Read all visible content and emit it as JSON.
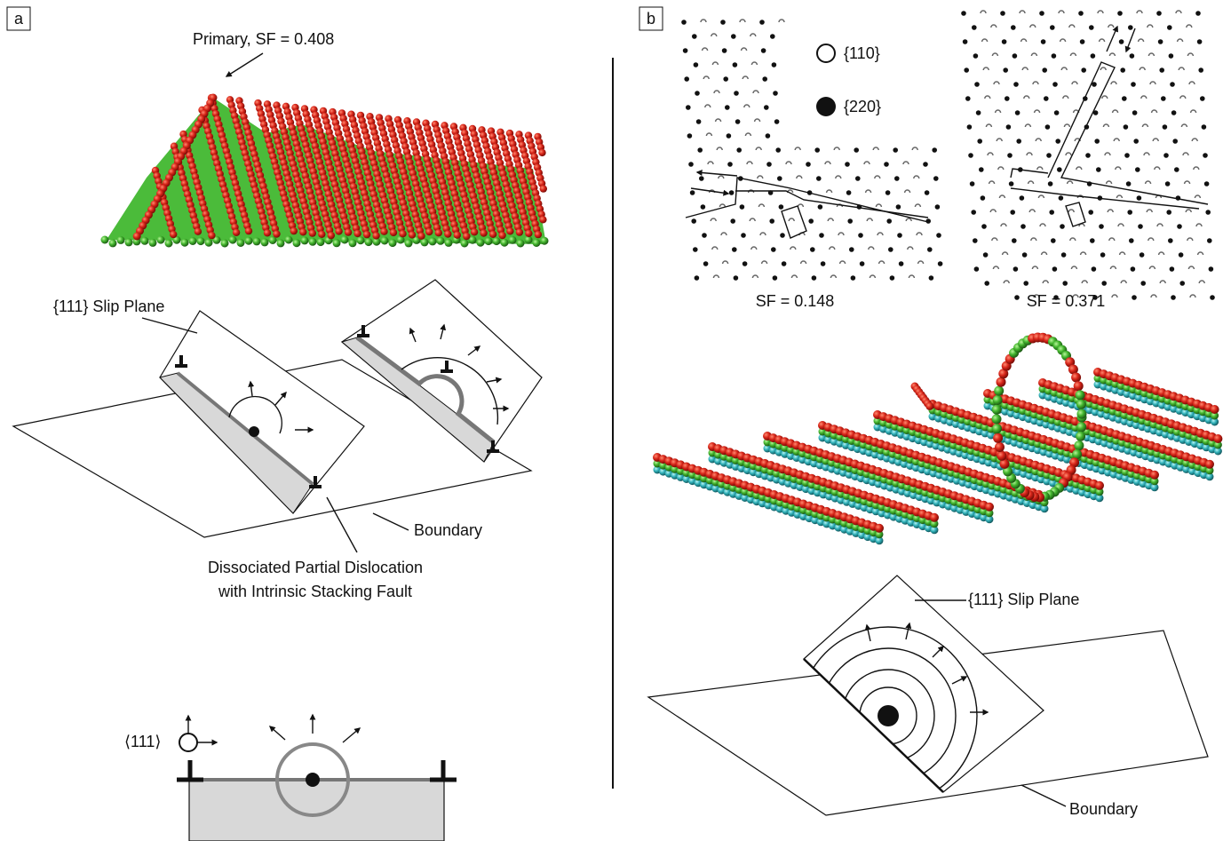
{
  "panel_a": {
    "label": "a",
    "annotation": "Primary, SF = 0.408",
    "slip_plane_label": "{111} Slip Plane",
    "boundary_label": "Boundary",
    "caption_lines": [
      "Dissociated Partial Dislocation",
      "with Intrinsic Stacking Fault"
    ],
    "direction_label": "⟨111⟩"
  },
  "panel_b": {
    "label": "b",
    "legend": [
      "{110}",
      "{220}"
    ],
    "sf_labels": [
      "SF = 0.148",
      "SF = 0.371"
    ],
    "slip_plane_label": "{111} Slip Plane",
    "boundary_label": "Boundary"
  }
}
